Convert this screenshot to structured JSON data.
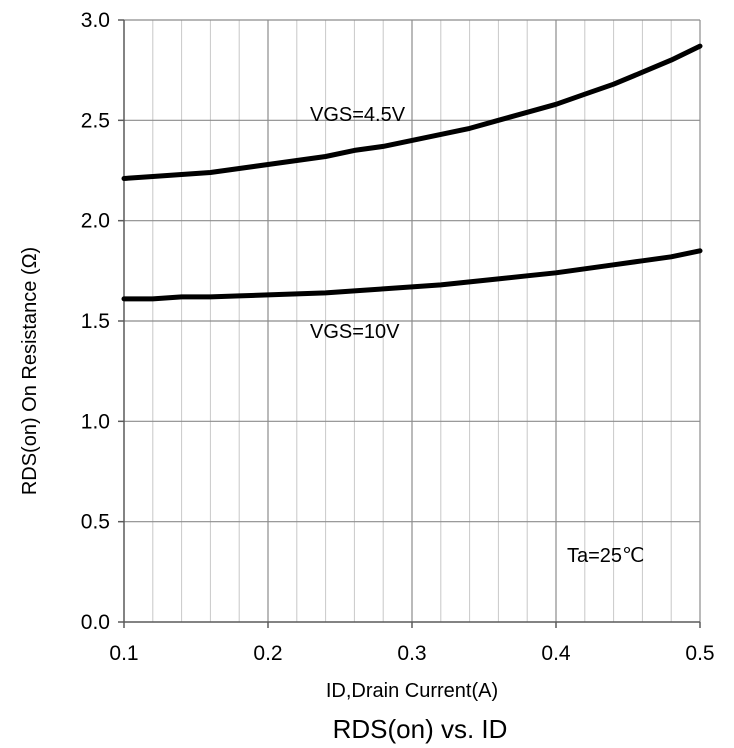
{
  "chart_data": {
    "type": "line",
    "title": "RDS(on) vs. ID",
    "xlabel": "ID,Drain Current(A)",
    "ylabel": "RDS(on)  On Resistance (Ω)",
    "xlim": [
      0.1,
      0.5
    ],
    "ylim": [
      0.0,
      3.0
    ],
    "x_ticks": [
      "0.1",
      "0.2",
      "0.3",
      "0.4",
      "0.5"
    ],
    "y_ticks": [
      "0.0",
      "0.5",
      "1.0",
      "1.5",
      "2.0",
      "2.5",
      "3.0"
    ],
    "x_minor_step": 0.02,
    "grid": true,
    "annotation": "Ta=25℃",
    "series": [
      {
        "name": "VGS=4.5V",
        "x": [
          0.1,
          0.12,
          0.14,
          0.16,
          0.18,
          0.2,
          0.22,
          0.24,
          0.26,
          0.28,
          0.3,
          0.32,
          0.34,
          0.36,
          0.38,
          0.4,
          0.42,
          0.44,
          0.46,
          0.48,
          0.5
        ],
        "values": [
          2.21,
          2.22,
          2.23,
          2.24,
          2.26,
          2.28,
          2.3,
          2.32,
          2.35,
          2.37,
          2.4,
          2.43,
          2.46,
          2.5,
          2.54,
          2.58,
          2.63,
          2.68,
          2.74,
          2.8,
          2.87
        ]
      },
      {
        "name": "VGS=10V",
        "x": [
          0.1,
          0.12,
          0.14,
          0.16,
          0.18,
          0.2,
          0.22,
          0.24,
          0.26,
          0.28,
          0.3,
          0.32,
          0.34,
          0.36,
          0.38,
          0.4,
          0.42,
          0.44,
          0.46,
          0.48,
          0.5
        ],
        "values": [
          1.61,
          1.61,
          1.62,
          1.62,
          1.625,
          1.63,
          1.635,
          1.64,
          1.65,
          1.66,
          1.67,
          1.68,
          1.695,
          1.71,
          1.725,
          1.74,
          1.76,
          1.78,
          1.8,
          1.82,
          1.85
        ]
      }
    ]
  }
}
